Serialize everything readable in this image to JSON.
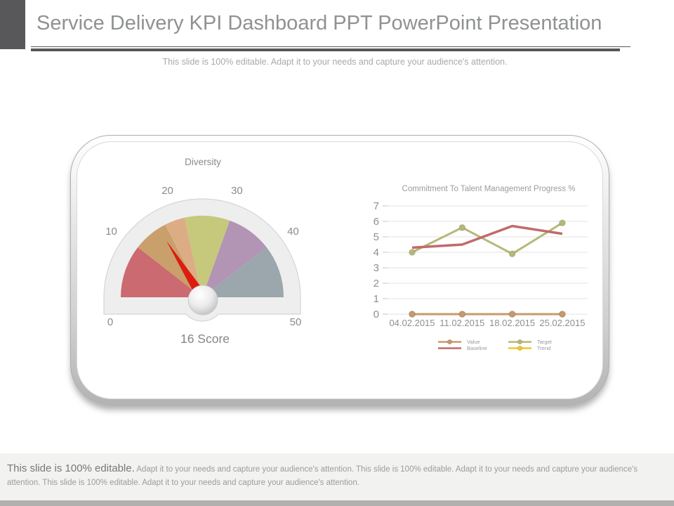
{
  "header": {
    "title": "Service Delivery KPI Dashboard PPT PowerPoint Presentation",
    "subtitle": "This slide is 100% editable. Adapt it to your needs and capture your audience's attention."
  },
  "chart_data": [
    {
      "type": "gauge",
      "title": "Diversity",
      "caption": "16 Score",
      "min": 0,
      "max": 50,
      "value": 16,
      "ticks": [
        0,
        10,
        20,
        30,
        40,
        50
      ],
      "segments": [
        {
          "from": 0,
          "to": 10.5,
          "color": "#cb6a70"
        },
        {
          "from": 10.5,
          "to": 17.5,
          "color": "#c99f6b"
        },
        {
          "from": 17.5,
          "to": 21.5,
          "color": "#dcad84"
        },
        {
          "from": 21.5,
          "to": 30.5,
          "color": "#c6c87c"
        },
        {
          "from": 30.5,
          "to": 39.5,
          "color": "#b294b5"
        },
        {
          "from": 39.5,
          "to": 50,
          "color": "#9ca6ad"
        }
      ],
      "needle_color": "#dd1c10",
      "ring_color": "#eeeeee",
      "ring_outline": "#d5d5d5",
      "label_color": "#8a8a8a"
    },
    {
      "type": "line",
      "title": "Commitment To Talent Management Progress %",
      "x": [
        "04.02.2015",
        "11.02.2015",
        "18.02.2015",
        "25.02.2015"
      ],
      "yticks": [
        0,
        1,
        2,
        3,
        4,
        5,
        6,
        7
      ],
      "ylim": [
        0,
        7
      ],
      "grid": true,
      "legend_position": "bottom",
      "series": [
        {
          "name": "Value",
          "color": "#c69a6d",
          "marker": true,
          "values": [
            0,
            0,
            0,
            0
          ]
        },
        {
          "name": "Baseline",
          "color": "#c16a6b",
          "marker": false,
          "values": [
            4.3,
            4.5,
            5.7,
            5.2
          ]
        },
        {
          "name": "Target",
          "color": "#b6b878",
          "marker": true,
          "values": [
            4.0,
            5.6,
            3.9,
            5.9
          ]
        },
        {
          "name": "Trend",
          "color": "#edc72c",
          "marker": true,
          "values": [
            0,
            0,
            0,
            0
          ]
        }
      ],
      "title_color": "#9c9c9c",
      "axis_text_color": "#8f8f8f",
      "grid_color": "#e3e3e3",
      "legend_text_color": "#9a9a9a"
    }
  ],
  "footer": {
    "lead": "This slide is 100% editable.",
    "body": " Adapt it to your needs and capture your audience's attention. This slide is 100% editable. Adapt it to your needs and capture your audience's attention. This slide is 100% editable. Adapt it to your needs and capture your audience's attention."
  }
}
